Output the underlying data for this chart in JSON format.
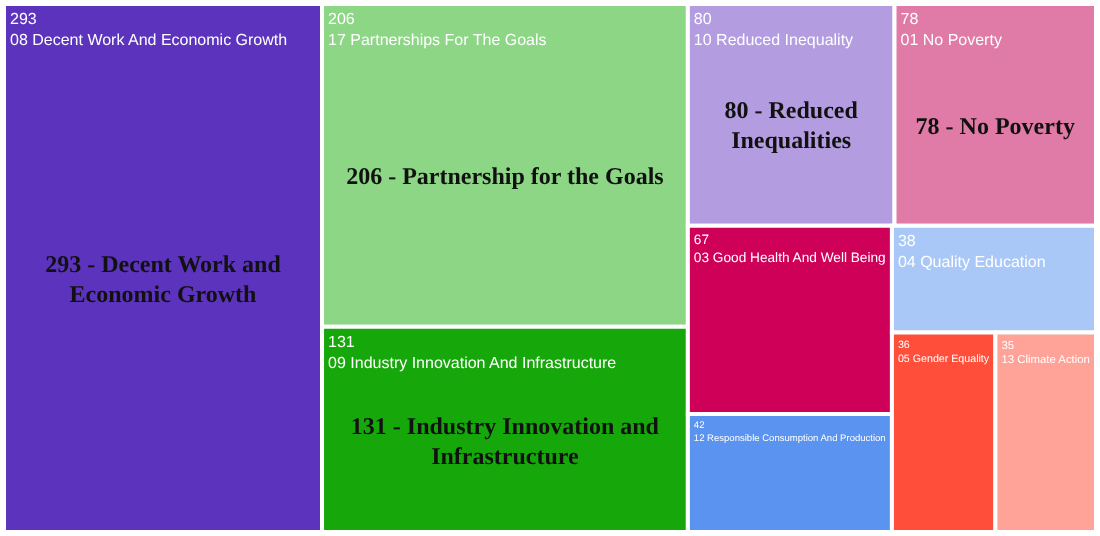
{
  "chart_data": {
    "type": "other",
    "data_labels": true,
    "categories": [
      "08 Decent Work And Economic Growth",
      "17 Partnerships For The Goals",
      "09 Industry Innovation And Infrastructure",
      "10 Reduced Inequality",
      "01 No Poverty",
      "03 Good Health And Well Being",
      "12 Responsible Consumption And Production",
      "04 Quality Education",
      "05 Gender Equality",
      "13 Climate Action"
    ],
    "values": [
      293,
      206,
      131,
      80,
      78,
      67,
      42,
      38,
      36,
      35
    ],
    "colors": [
      "#5c33bd",
      "#8cd685",
      "#16a80a",
      "#b39ce0",
      "#e07aa6",
      "#cf0058",
      "#5b93f0",
      "#a9c8f7",
      "#ff4f3b",
      "#ffa399"
    ],
    "annotations": [
      "293 - Decent Work and Economic Growth",
      "206 - Partnership for the Goals",
      "131 - Industry Innovation and Infrastructure",
      "80 - Reduced Inequalities",
      "78 - No Poverty"
    ]
  }
}
